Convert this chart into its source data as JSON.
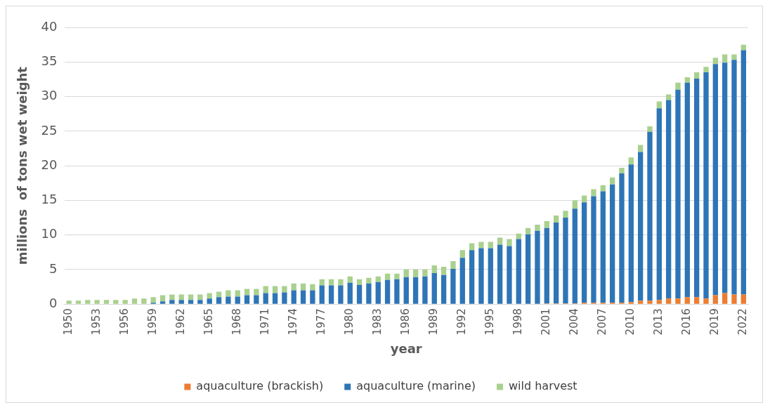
{
  "chart_data": {
    "type": "bar",
    "stacked": true,
    "xlabel": "year",
    "ylabel": "millions  of tons wet weight",
    "categories": [
      "1950",
      null,
      null,
      "1953",
      null,
      null,
      "1956",
      null,
      null,
      "1959",
      null,
      null,
      "1962",
      null,
      null,
      "1965",
      null,
      null,
      "1968",
      null,
      null,
      "1971",
      null,
      null,
      "1974",
      null,
      null,
      "1977",
      null,
      null,
      "1980",
      null,
      null,
      "1983",
      null,
      null,
      "1986",
      null,
      null,
      "1989",
      null,
      null,
      "1992",
      null,
      null,
      "1995",
      null,
      null,
      "1998",
      null,
      null,
      "2001",
      null,
      null,
      "2004",
      null,
      null,
      "2007",
      null,
      null,
      "2010",
      null,
      null,
      "2013",
      null,
      null,
      "2016",
      null,
      null,
      "2019",
      null,
      null,
      "2022"
    ],
    "series": [
      {
        "name": "aquaculture (brackish)",
        "color": "#ed7d31",
        "values": [
          0,
          0,
          0,
          0,
          0,
          0,
          0,
          0,
          0,
          0,
          0,
          0,
          0,
          0,
          0,
          0,
          0,
          0,
          0,
          0,
          0,
          0,
          0,
          0,
          0,
          0,
          0,
          0,
          0,
          0,
          0,
          0,
          0,
          0,
          0,
          0,
          0,
          0,
          0,
          0,
          0,
          0,
          0,
          0,
          0,
          0,
          0,
          0,
          0,
          0,
          0,
          0.1,
          0.1,
          0.1,
          0.1,
          0.2,
          0.2,
          0.2,
          0.2,
          0.2,
          0.3,
          0.5,
          0.5,
          0.6,
          0.8,
          0.8,
          1.0,
          1.0,
          0.8,
          1.3,
          1.6,
          1.4,
          1.4
        ]
      },
      {
        "name": "aquaculture (marine)",
        "color": "#2e75b6",
        "values": [
          0,
          0,
          0,
          0,
          0,
          0,
          0,
          0,
          0,
          0.2,
          0.4,
          0.6,
          0.6,
          0.6,
          0.6,
          0.8,
          1.0,
          1.1,
          1.1,
          1.3,
          1.3,
          1.6,
          1.6,
          1.7,
          2.0,
          2.0,
          2.0,
          2.7,
          2.7,
          2.7,
          3.1,
          2.8,
          3.0,
          3.2,
          3.5,
          3.6,
          3.9,
          3.9,
          4.0,
          4.5,
          4.2,
          5.1,
          6.7,
          7.8,
          8.1,
          8.1,
          8.6,
          8.4,
          9.4,
          10.1,
          10.6,
          10.9,
          11.7,
          12.4,
          13.7,
          14.5,
          15.4,
          16.1,
          17.1,
          18.7,
          19.9,
          21.5,
          24.4,
          27.7,
          28.7,
          30.2,
          31.0,
          31.6,
          32.7,
          33.4,
          33.3,
          33.9,
          35.3
        ]
      },
      {
        "name": "wild harvest",
        "color": "#a9d18e",
        "values": [
          0.5,
          0.5,
          0.6,
          0.6,
          0.6,
          0.6,
          0.6,
          0.8,
          0.8,
          0.8,
          0.9,
          0.8,
          0.8,
          0.8,
          0.8,
          0.8,
          0.8,
          0.9,
          0.9,
          0.9,
          0.9,
          1.0,
          1.0,
          0.9,
          1.0,
          1.0,
          0.9,
          0.9,
          0.9,
          0.9,
          0.9,
          0.8,
          0.8,
          0.8,
          0.9,
          0.8,
          1.1,
          1.1,
          1.0,
          1.1,
          1.2,
          1.1,
          1.1,
          1.0,
          0.9,
          0.9,
          1.0,
          1.0,
          0.8,
          0.9,
          0.9,
          1.0,
          1.0,
          1.0,
          1.2,
          1.0,
          1.0,
          0.9,
          1.0,
          0.8,
          1.0,
          1.0,
          0.8,
          1.0,
          0.8,
          1.0,
          0.8,
          0.9,
          0.8,
          0.9,
          1.2,
          0.8,
          0.8
        ]
      }
    ],
    "ylim": [
      0,
      40
    ],
    "yticks": [
      0,
      5,
      10,
      15,
      20,
      25,
      30,
      35,
      40
    ],
    "grid": "y",
    "legend": "bottom"
  }
}
